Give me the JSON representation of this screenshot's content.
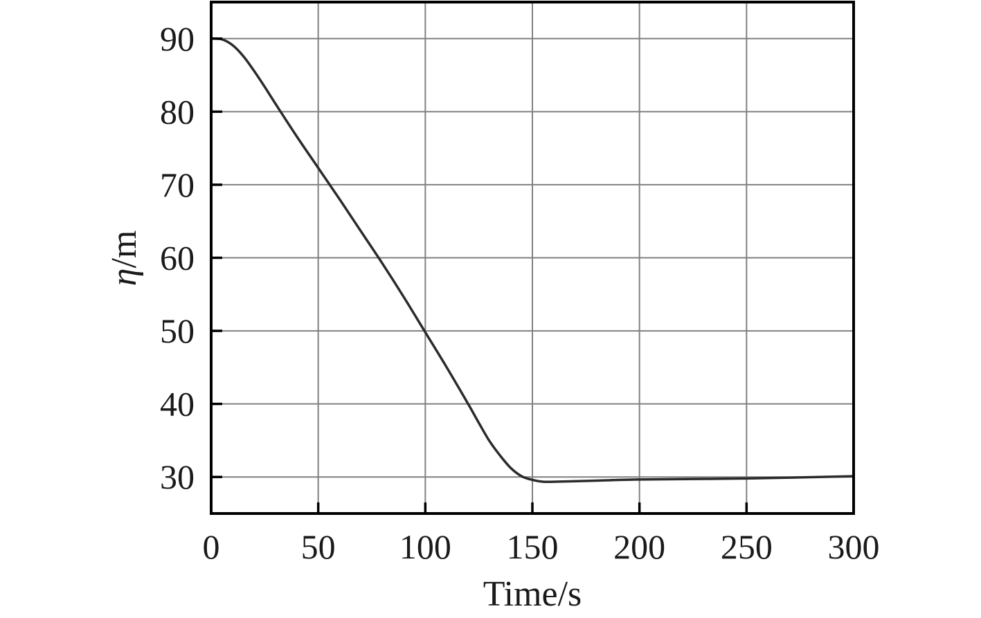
{
  "chart_data": {
    "type": "line",
    "title": "",
    "xlabel": "Time/s",
    "ylabel_symbol": "η",
    "ylabel_unit": "/m",
    "xlim": [
      0,
      300
    ],
    "ylim": [
      25,
      95
    ],
    "xticks": [
      0,
      50,
      100,
      150,
      200,
      250,
      300
    ],
    "xtick_labels": [
      "0",
      "50",
      "100",
      "150",
      "200",
      "250",
      "300"
    ],
    "yticks": [
      30,
      40,
      50,
      60,
      70,
      80,
      90
    ],
    "ytick_labels": [
      "30",
      "40",
      "50",
      "60",
      "70",
      "80",
      "90"
    ],
    "grid": true,
    "series": [
      {
        "color": "#2b2b2b",
        "x": [
          0,
          5,
          10,
          15,
          20,
          25,
          30,
          40,
          50,
          60,
          70,
          80,
          90,
          100,
          110,
          120,
          125,
          130,
          135,
          140,
          145,
          150,
          155,
          160,
          180,
          200,
          250,
          300
        ],
        "y": [
          90,
          89.9,
          89.1,
          87.6,
          85.6,
          83.4,
          81.1,
          76.6,
          72.3,
          68.0,
          63.6,
          59.2,
          54.6,
          49.8,
          45.0,
          40.0,
          37.4,
          34.9,
          32.9,
          31.2,
          30.1,
          29.6,
          29.35,
          29.35,
          29.5,
          29.65,
          29.8,
          30.1
        ]
      }
    ]
  }
}
